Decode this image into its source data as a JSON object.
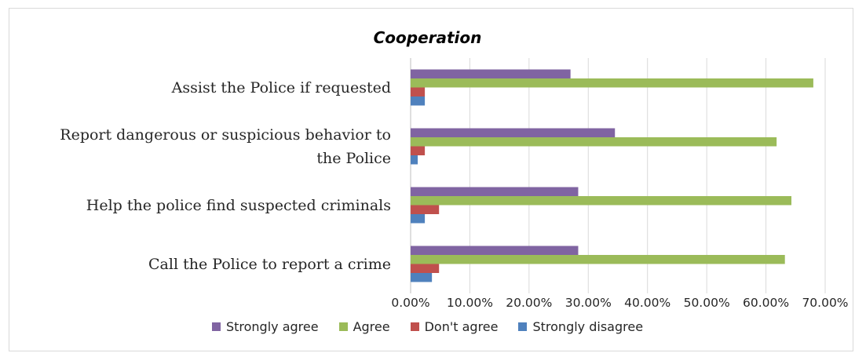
{
  "chart_data": {
    "type": "bar",
    "orientation": "horizontal",
    "title": "Cooperation",
    "categories": [
      "Assist the Police if requested",
      "Report dangerous or suspicious behavior to the Police",
      "Help the police find suspected criminals",
      "Call the Police to report a crime"
    ],
    "category_lines": [
      [
        "Assist the Police if requested"
      ],
      [
        "Report dangerous or suspicious behavior to",
        "the Police"
      ],
      [
        "Help the police find suspected criminals"
      ],
      [
        "Call the Police to report a crime"
      ]
    ],
    "series": [
      {
        "name": "Strongly agree",
        "color": "#8064A2",
        "values": [
          27.0,
          34.5,
          28.3,
          28.3
        ]
      },
      {
        "name": "Agree",
        "color": "#9BBB59",
        "values": [
          68.0,
          61.8,
          64.3,
          63.2
        ]
      },
      {
        "name": "Don't agree",
        "color": "#C0504D",
        "values": [
          2.4,
          2.4,
          4.8,
          4.8
        ]
      },
      {
        "name": "Strongly disagree",
        "color": "#4F81BD",
        "values": [
          2.4,
          1.2,
          2.4,
          3.6
        ]
      }
    ],
    "xlim": [
      0,
      70
    ],
    "x_ticks": [
      "0.00%",
      "10.00%",
      "20.00%",
      "30.00%",
      "40.00%",
      "50.00%",
      "60.00%",
      "70.00%"
    ],
    "grid": true,
    "legend_position": "bottom"
  }
}
